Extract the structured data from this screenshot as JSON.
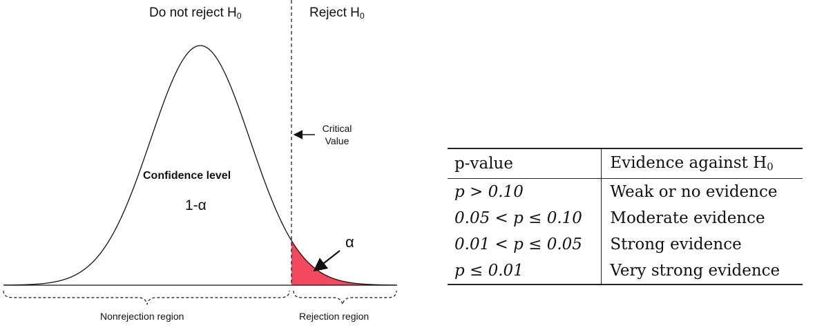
{
  "diagram": {
    "labels": {
      "do_not_reject": "Do not reject H",
      "reject": "Reject H",
      "subscript": "0",
      "critical_value_line1": "Critical",
      "critical_value_line2": "Value",
      "confidence_level": "Confidence level",
      "confidence_value": "1-α",
      "alpha": "α",
      "nonrejection_region": "Nonrejection region",
      "rejection_region": "Rejection region"
    },
    "colors": {
      "rejection_fill": "#f2495f",
      "curve": "#111111"
    }
  },
  "evidence_table": {
    "headers": {
      "p_value": "p-value",
      "evidence": "Evidence against H",
      "evidence_sub": "0"
    },
    "rows": [
      {
        "condition": "p > 0.10",
        "evidence": "Weak or no evidence"
      },
      {
        "condition": "0.05 < p ≤ 0.10",
        "evidence": "Moderate evidence"
      },
      {
        "condition": "0.01 < p ≤ 0.05",
        "evidence": "Strong evidence"
      },
      {
        "condition": "p ≤ 0.01",
        "evidence": "Very strong evidence"
      }
    ]
  }
}
